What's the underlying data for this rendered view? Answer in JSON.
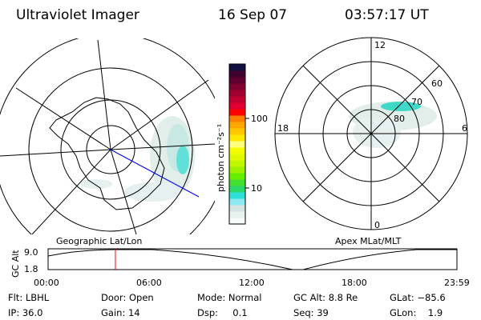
{
  "header": {
    "instrument": "Ultraviolet Imager",
    "date": "16 Sep 07",
    "time": "03:57:17 UT"
  },
  "left_map": {
    "label": "Geographic Lat/Lon"
  },
  "right_map": {
    "label": "Apex MLat/MLT",
    "mlt_labels": [
      "12",
      "18",
      "6",
      "0"
    ],
    "mlat_labels": [
      "60",
      "70",
      "80"
    ]
  },
  "colorbar": {
    "unit_label": "photon cm⁻²s⁻¹",
    "tick_labels": [
      "100",
      "10"
    ],
    "colors": [
      "#f8fbf9",
      "#e8f3ee",
      "#d4e4e4",
      "#8ee9f0",
      "#2ee0d8",
      "#2ad86a",
      "#42e030",
      "#66f000",
      "#9cf000",
      "#c0f800",
      "#e0f800",
      "#f4fc00",
      "#ffff80",
      "#ffe800",
      "#ffc800",
      "#ffa800",
      "#ff8000",
      "#ff0000",
      "#e00030",
      "#c00030",
      "#a00030",
      "#800030",
      "#600030",
      "#400030",
      "#101040"
    ]
  },
  "timeline": {
    "ylabel": "GC Alt",
    "y_ticks": [
      "9.0",
      "1.8"
    ],
    "x_ticks": [
      "00:00",
      "06:00",
      "12:00",
      "18:00",
      "23:59"
    ],
    "current_time_hours": 3.95,
    "marker_color": "#ff0000"
  },
  "info": {
    "filter": "Flt: LBHL",
    "door": "Door: Open",
    "mode": "Mode: Normal",
    "gc_alt": "GC Alt: 8.8 Re",
    "glat": "GLat: −85.6",
    "ip": "IP: 36.0",
    "gain": "Gain: 14",
    "dsp": "Dsp:     0.1",
    "seq": "Seq: 39",
    "glon": "GLon:    1.9"
  }
}
